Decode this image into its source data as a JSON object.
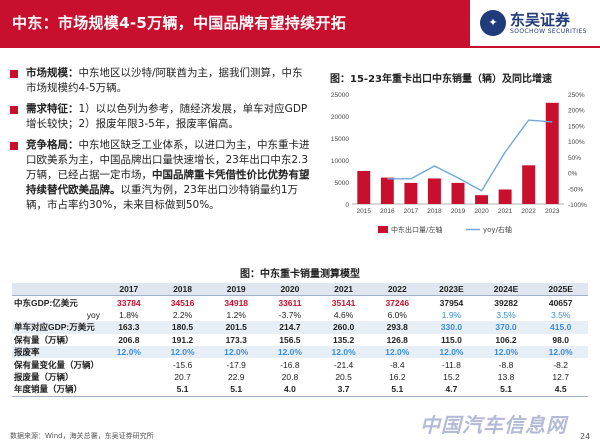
{
  "header": {
    "title": "中东：市场规模4-5万辆，中国品牌有望持续开拓",
    "logo_mark": "✦",
    "logo_cn": "东吴证券",
    "logo_en": "SOOCHOW SECURITIES"
  },
  "bullets": [
    {
      "key": "市场规模：",
      "text": "中东地区以沙特/阿联酋为主，据我们测算，中东市场规模约4-5万辆。"
    },
    {
      "key": "需求特征：",
      "text": "1）以以色列为参考，随经济发展，单车对应GDP增长较快；2）报废年限3-5年，报废率偏高。"
    },
    {
      "key": "竞争格局：",
      "text_before": "中东地区缺乏工业体系，以进口为主，中东重卡进口欧美系为主，中国品牌出口量快速增长，23年出口中东2.3万辆，已经占据一定市场，",
      "highlight": "中国品牌重卡凭借性价比优势有望持续替代欧美品牌。",
      "text_after": "以重汽为例，23年出口沙特销量约1万辆，市占率约30%，未来目标做到50%。"
    }
  ],
  "chart_data": [
    {
      "type": "bar",
      "title": "图：15-23年重卡出口中东销量（辆）及同比增速",
      "categories": [
        "2015",
        "2016",
        "2017",
        "2018",
        "2019",
        "2020",
        "2021",
        "2022",
        "2023"
      ],
      "series": [
        {
          "name": "中东出口量/左轴",
          "type": "bar",
          "values": [
            7500,
            6000,
            4800,
            5800,
            4800,
            2000,
            3300,
            8800,
            23000
          ],
          "color": "#c8102e"
        },
        {
          "name": "yoy/右轴",
          "type": "line",
          "values": [
            null,
            -20,
            -20,
            21,
            -17,
            -58,
            65,
            167,
            161
          ],
          "color": "#6fa8dc"
        }
      ],
      "y_left": {
        "ticks": [
          0,
          5000,
          10000,
          15000,
          20000,
          25000
        ],
        "lim": [
          0,
          25000
        ]
      },
      "y_right": {
        "ticks": [
          "-100%",
          "-50%",
          "0%",
          "50%",
          "100%",
          "150%",
          "200%",
          "250%"
        ],
        "lim": [
          -100,
          250
        ]
      }
    },
    {
      "type": "table",
      "title": "图：中东重卡销量测算模型",
      "columns": [
        "",
        "2017",
        "2018",
        "2019",
        "2020",
        "2021",
        "2022",
        "2023E",
        "2024E",
        "2025E"
      ],
      "rows": [
        {
          "label": "中东GDP:亿美元",
          "cells": [
            "33784",
            "34516",
            "34918",
            "33611",
            "35141",
            "37246",
            "37954",
            "39282",
            "40657"
          ],
          "style": "bold",
          "colors": [
            "red",
            "red",
            "red",
            "red",
            "red",
            "red",
            "",
            "",
            ""
          ]
        },
        {
          "label": "yoy",
          "cells": [
            "1.8%",
            "2.2%",
            "1.2%",
            "-3.7%",
            "4.6%",
            "6.0%",
            "1.9%",
            "3.5%",
            "3.5%"
          ],
          "indent": true,
          "colors": [
            "",
            "",
            "",
            "",
            "",
            "",
            "blue",
            "blue",
            "blue"
          ]
        },
        {
          "label": "单车对应GDP:万美元",
          "cells": [
            "163.3",
            "180.5",
            "201.5",
            "214.7",
            "260.0",
            "293.8",
            "330.0",
            "370.0",
            "415.0"
          ],
          "style": "shade",
          "colors": [
            "",
            "",
            "",
            "",
            "",
            "",
            "blue",
            "blue",
            "blue"
          ]
        },
        {
          "label": "保有量（万辆）",
          "cells": [
            "206.8",
            "191.2",
            "173.3",
            "156.5",
            "135.2",
            "126.8",
            "115.0",
            "106.2",
            "98.0"
          ],
          "style": "bold"
        },
        {
          "label": "报废率",
          "cells": [
            "12.0%",
            "12.0%",
            "12.0%",
            "12.0%",
            "12.0%",
            "12.0%",
            "12.0%",
            "12.0%",
            "12.0%"
          ],
          "style": "shade",
          "colors": [
            "blue",
            "blue",
            "blue",
            "blue",
            "blue",
            "blue",
            "blue",
            "blue",
            "blue"
          ]
        },
        {
          "label": "保有量变化量（万辆）",
          "cells": [
            "",
            "-15.6",
            "-17.9",
            "-16.8",
            "-21.4",
            "-8.4",
            "-11.8",
            "-8.8",
            "-8.2"
          ]
        },
        {
          "label": "报废量（万辆）",
          "cells": [
            "",
            "20.7",
            "22.9",
            "20.8",
            "20.5",
            "16.2",
            "15.2",
            "13.8",
            "12.7"
          ]
        },
        {
          "label": "年度销量（万辆）",
          "cells": [
            "",
            "5.1",
            "5.1",
            "4.0",
            "3.7",
            "5.1",
            "4.7",
            "5.1",
            "4.5"
          ],
          "style": "bold"
        }
      ]
    }
  ],
  "footer": {
    "source": "数据来源：Wind，海关总署，东吴证券研究所",
    "page": "24",
    "watermark": "中国汽车信息网"
  }
}
